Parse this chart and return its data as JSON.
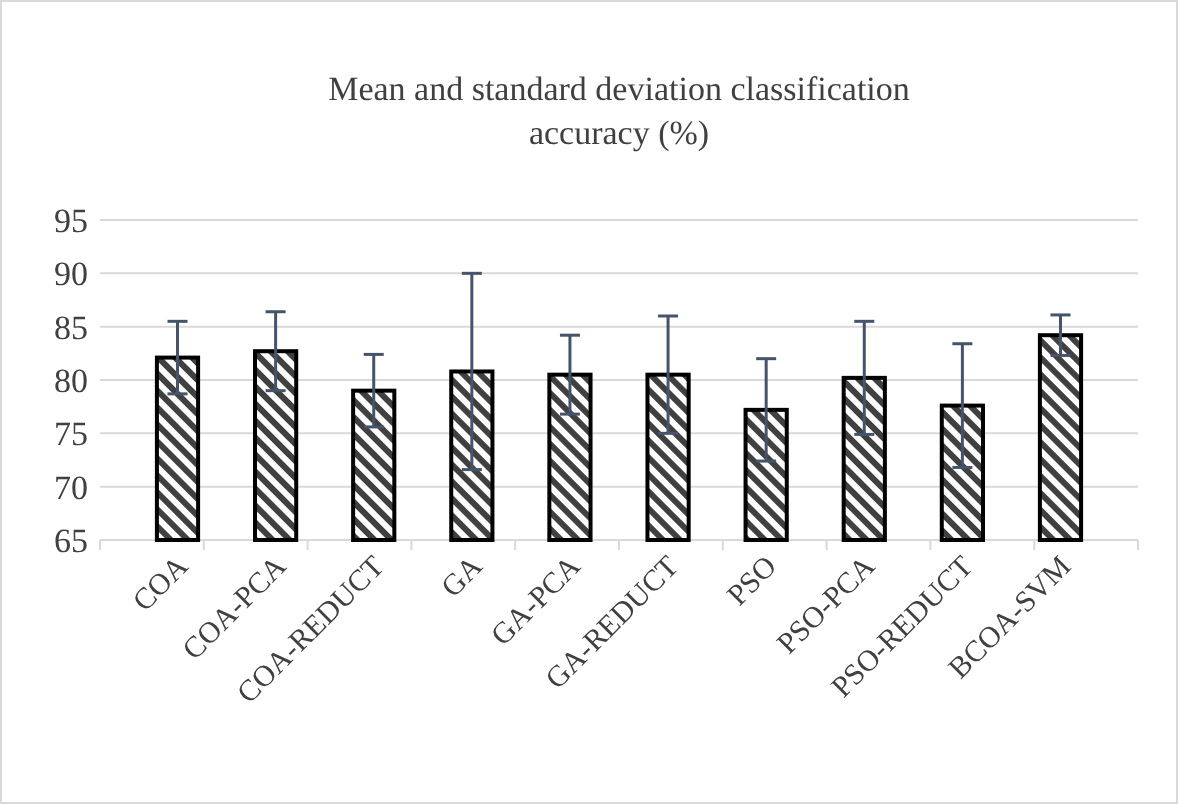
{
  "chart_data": {
    "type": "bar",
    "title": "Mean and standard deviation classification accuracy (%)",
    "categories": [
      "COA",
      "COA-PCA",
      "COA-REDUCT",
      "GA",
      "GA-PCA",
      "GA-REDUCT",
      "PSO",
      "PSO-PCA",
      "PSO-REDUCT",
      "BCOA-SVM"
    ],
    "values": [
      82.1,
      82.7,
      79.0,
      80.8,
      80.5,
      80.5,
      77.2,
      80.2,
      77.6,
      84.2
    ],
    "errors": [
      3.4,
      3.7,
      3.4,
      9.2,
      3.7,
      5.5,
      4.8,
      5.3,
      5.8,
      1.9
    ],
    "color": "#000000",
    "ylim": [
      65,
      95
    ],
    "yticks": [
      65,
      70,
      75,
      80,
      85,
      90,
      95
    ],
    "grid": "y"
  }
}
